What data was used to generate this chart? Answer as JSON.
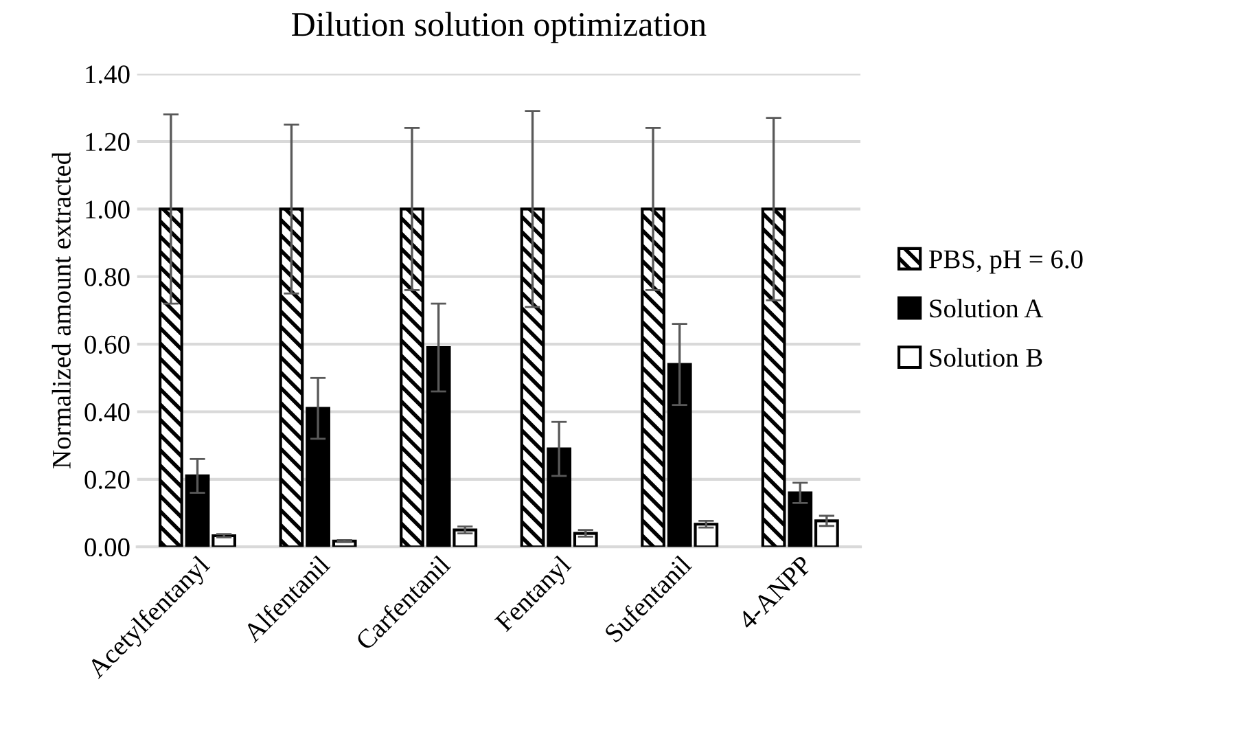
{
  "chart_data": {
    "type": "bar",
    "title": "Dilution solution optimization",
    "ylabel": "Normalized amount extracted",
    "categories": [
      "Acetylfentanyl",
      "Alfentanil",
      "Carfentanil",
      "Fentanyl",
      "Sufentanil",
      "4-ANPP"
    ],
    "series": [
      {
        "name": "PBS, pH = 6.0",
        "color": "#000000",
        "values": [
          1.0,
          1.0,
          1.0,
          1.0,
          1.0,
          1.0
        ],
        "errors": [
          0.28,
          0.25,
          0.24,
          0.29,
          0.24,
          0.27
        ]
      },
      {
        "name": "Solution A",
        "color": "#000000",
        "values": [
          0.21,
          0.41,
          0.59,
          0.29,
          0.54,
          0.16
        ],
        "errors": [
          0.05,
          0.09,
          0.13,
          0.08,
          0.12,
          0.03
        ]
      },
      {
        "name": "Solution B",
        "color": "#ffffff",
        "values": [
          0.033,
          0.017,
          0.05,
          0.04,
          0.067,
          0.077
        ],
        "errors": [
          0.005,
          0.003,
          0.01,
          0.01,
          0.01,
          0.015
        ]
      }
    ],
    "ylim": [
      0,
      1.4
    ],
    "yticks": [
      {
        "value": 0,
        "label": "0.00"
      },
      {
        "value": 0.2,
        "label": "0.20"
      },
      {
        "value": 0.4,
        "label": "0.40"
      },
      {
        "value": 0.6,
        "label": "0.60"
      },
      {
        "value": 0.8,
        "label": "0.80"
      },
      {
        "value": 1.0,
        "label": "1.00"
      },
      {
        "value": 1.2,
        "label": "1.20"
      },
      {
        "value": 1.4,
        "label": "1.40"
      }
    ],
    "grid": "y",
    "legend": "right"
  }
}
